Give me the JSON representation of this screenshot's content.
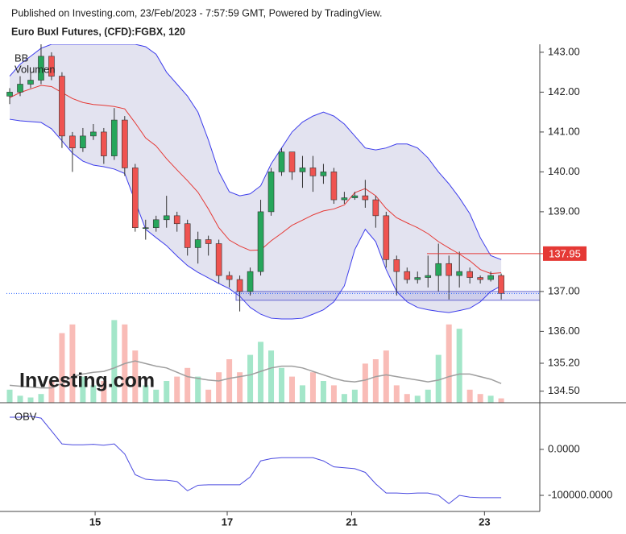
{
  "header": {
    "published": "Published on Investing.com, 23/Feb/2023 - 7:57:59 GMT, Powered by TradingView.",
    "symbol": "Euro Buxl Futures, (CFD):FGBX, 120"
  },
  "chart_data": [
    {
      "type": "candlestick",
      "watermark": "Investing.com",
      "up_color": "#26a65b",
      "down_color": "#ef5350",
      "x": [
        0,
        1,
        2,
        3,
        4,
        5,
        6,
        7,
        8,
        9,
        10,
        11,
        12,
        13,
        14,
        15,
        16,
        17,
        18,
        19,
        20,
        21,
        22,
        23,
        24,
        25,
        26,
        27,
        28,
        29,
        30,
        31,
        32,
        33,
        34,
        35,
        36,
        37,
        38,
        39,
        40,
        41,
        42,
        43,
        44,
        45,
        46,
        47
      ],
      "open": [
        141.9,
        142.0,
        142.2,
        142.3,
        142.9,
        142.4,
        140.9,
        140.6,
        140.9,
        141.0,
        140.4,
        141.3,
        140.1,
        138.6,
        138.6,
        138.8,
        138.9,
        138.7,
        138.1,
        138.3,
        138.2,
        137.4,
        137.3,
        137.0,
        137.5,
        139.0,
        140.0,
        140.5,
        140.0,
        140.1,
        139.9,
        140.0,
        139.3,
        139.35,
        139.4,
        139.3,
        138.9,
        137.8,
        137.5,
        137.3,
        137.35,
        137.4,
        137.7,
        137.4,
        137.5,
        137.35,
        137.3,
        137.4
      ],
      "high": [
        142.1,
        142.4,
        142.5,
        143.2,
        143.0,
        142.5,
        141.0,
        141.1,
        141.2,
        141.1,
        141.6,
        141.4,
        140.2,
        138.8,
        138.9,
        139.4,
        139.0,
        138.8,
        138.5,
        138.4,
        138.3,
        137.5,
        137.4,
        137.6,
        139.3,
        140.1,
        140.6,
        140.5,
        140.4,
        140.4,
        140.2,
        140.1,
        139.5,
        139.5,
        139.8,
        139.4,
        139.0,
        137.9,
        137.6,
        137.5,
        137.9,
        138.2,
        137.9,
        138.0,
        137.6,
        137.4,
        137.5,
        137.45
      ],
      "low": [
        141.7,
        141.9,
        142.1,
        142.2,
        142.3,
        140.6,
        140.0,
        140.5,
        140.8,
        140.2,
        140.3,
        139.9,
        138.5,
        138.3,
        138.5,
        138.6,
        138.5,
        137.9,
        137.7,
        137.9,
        137.2,
        137.1,
        136.5,
        136.9,
        137.4,
        138.9,
        139.9,
        139.8,
        139.6,
        139.5,
        139.7,
        139.2,
        139.2,
        139.3,
        139.1,
        138.6,
        137.6,
        136.9,
        137.2,
        137.2,
        137.1,
        137.0,
        136.8,
        137.1,
        137.2,
        137.2,
        137.25,
        136.8
      ],
      "close": [
        142.0,
        142.2,
        142.3,
        142.9,
        142.4,
        140.9,
        140.6,
        140.9,
        141.0,
        140.4,
        141.3,
        140.1,
        138.6,
        138.6,
        138.8,
        138.9,
        138.7,
        138.1,
        138.3,
        138.2,
        137.4,
        137.3,
        137.0,
        137.5,
        139.0,
        140.0,
        140.5,
        140.0,
        140.1,
        139.9,
        140.0,
        139.3,
        139.35,
        139.4,
        139.3,
        138.9,
        137.8,
        137.5,
        137.3,
        137.35,
        137.4,
        137.7,
        137.4,
        137.5,
        137.35,
        137.3,
        137.4,
        136.95
      ],
      "bollinger": {
        "name": "BB",
        "color": "#3d3dec",
        "middle_color": "#e53935",
        "fill": "#e3e3f0",
        "upper": [
          142.4,
          142.7,
          142.9,
          143.1,
          143.2,
          143.2,
          143.2,
          143.2,
          143.2,
          143.2,
          143.2,
          143.2,
          143.2,
          143.14,
          142.95,
          142.5,
          142.2,
          141.9,
          141.5,
          140.8,
          140.0,
          139.5,
          139.4,
          139.45,
          139.65,
          140.2,
          140.6,
          141.0,
          141.25,
          141.4,
          141.5,
          141.4,
          141.2,
          140.9,
          140.6,
          140.55,
          140.6,
          140.7,
          140.7,
          140.6,
          140.35,
          140.0,
          139.7,
          139.35,
          138.95,
          138.35,
          137.9,
          137.8
        ],
        "middle": [
          141.86,
          141.99,
          142.08,
          142.17,
          142.14,
          141.99,
          141.84,
          141.74,
          141.69,
          141.67,
          141.64,
          141.58,
          141.23,
          140.85,
          140.65,
          140.33,
          140.05,
          139.78,
          139.49,
          139.07,
          138.6,
          138.29,
          138.14,
          138.03,
          138.04,
          138.27,
          138.46,
          138.66,
          138.79,
          138.92,
          139.02,
          139.07,
          139.17,
          139.48,
          139.58,
          139.4,
          139.08,
          138.85,
          138.72,
          138.6,
          138.45,
          138.25,
          138.09,
          137.94,
          137.77,
          137.55,
          137.45,
          137.47
        ],
        "lower": [
          141.32,
          141.28,
          141.26,
          141.24,
          141.08,
          140.78,
          140.47,
          140.27,
          140.17,
          140.13,
          140.07,
          139.96,
          139.26,
          138.56,
          138.35,
          138.15,
          137.89,
          137.65,
          137.48,
          137.34,
          137.2,
          137.07,
          136.88,
          136.6,
          136.43,
          136.33,
          136.31,
          136.31,
          136.33,
          136.43,
          136.54,
          136.74,
          137.14,
          138.05,
          138.56,
          138.25,
          137.55,
          137.0,
          136.74,
          136.6,
          136.54,
          136.5,
          136.47,
          136.52,
          136.58,
          136.74,
          137.0,
          137.14
        ]
      },
      "volume": {
        "name": "Volumen",
        "up_color": "#a3e6c9",
        "down_color": "#f9bcb7",
        "ma_color": "#9e9e9e",
        "ylim": [
          0,
          100
        ],
        "values": [
          15,
          8,
          6,
          10,
          25,
          80,
          90,
          30,
          20,
          25,
          95,
          90,
          60,
          20,
          15,
          25,
          30,
          40,
          30,
          15,
          35,
          50,
          35,
          55,
          70,
          60,
          40,
          30,
          20,
          35,
          25,
          20,
          10,
          15,
          45,
          50,
          60,
          20,
          10,
          8,
          15,
          55,
          90,
          85,
          15,
          10,
          8,
          5
        ],
        "ma": [
          20,
          19,
          18,
          17,
          17,
          22,
          30,
          33,
          35,
          36,
          40,
          45,
          48,
          45,
          42,
          40,
          35,
          30,
          28,
          26,
          25,
          28,
          30,
          32,
          36,
          40,
          42,
          42,
          40,
          36,
          32,
          28,
          25,
          24,
          26,
          30,
          32,
          30,
          28,
          26,
          24,
          26,
          30,
          33,
          33,
          30,
          27,
          22
        ]
      },
      "price_line": 137.95,
      "price_line_color": "#e53935",
      "drawing": {
        "top": 137.0,
        "bottom": 136.78,
        "color": "#6a6ad0"
      },
      "xlim": [
        -0.31,
        50.69
      ],
      "ylim": [
        134.21,
        143.2
      ],
      "xticks": [
        {
          "value": 8.17,
          "label": "15"
        },
        {
          "value": 20.8,
          "label": "17"
        },
        {
          "value": 32.7,
          "label": "21"
        },
        {
          "value": 45.4,
          "label": "23"
        }
      ],
      "yticks": [
        {
          "value": 143,
          "label": "143.00"
        },
        {
          "value": 142,
          "label": "142.00"
        },
        {
          "value": 141,
          "label": "141.00"
        },
        {
          "value": 140,
          "label": "140.00"
        },
        {
          "value": 139,
          "label": "139.00"
        },
        {
          "value": 137,
          "label": "137.00"
        },
        {
          "value": 136,
          "label": "136.00"
        },
        {
          "value": 135.2,
          "label": "135.20"
        },
        {
          "value": 134.5,
          "label": "134.50"
        }
      ]
    },
    {
      "type": "line",
      "name": "OBV",
      "color": "#4a4ae0",
      "values": [
        70000,
        70000,
        72000,
        68000,
        40000,
        12000,
        10000,
        10000,
        11000,
        9000,
        12000,
        -10000,
        -55000,
        -65000,
        -67000,
        -67000,
        -70000,
        -90000,
        -78000,
        -77000,
        -77000,
        -77000,
        -77000,
        -60000,
        -25000,
        -20000,
        -18000,
        -18000,
        -18000,
        -18000,
        -25000,
        -38000,
        -40000,
        -42000,
        -50000,
        -75000,
        -95000,
        -95000,
        -96000,
        -95000,
        -95000,
        -100000,
        -118000,
        -100000,
        -104000,
        -105000,
        -105000,
        -105000
      ],
      "ylim": [
        -135000,
        98000
      ],
      "yticks": [
        {
          "value": 0,
          "label": "0.0000"
        },
        {
          "value": -100000,
          "label": "-100000.0000"
        }
      ]
    }
  ]
}
